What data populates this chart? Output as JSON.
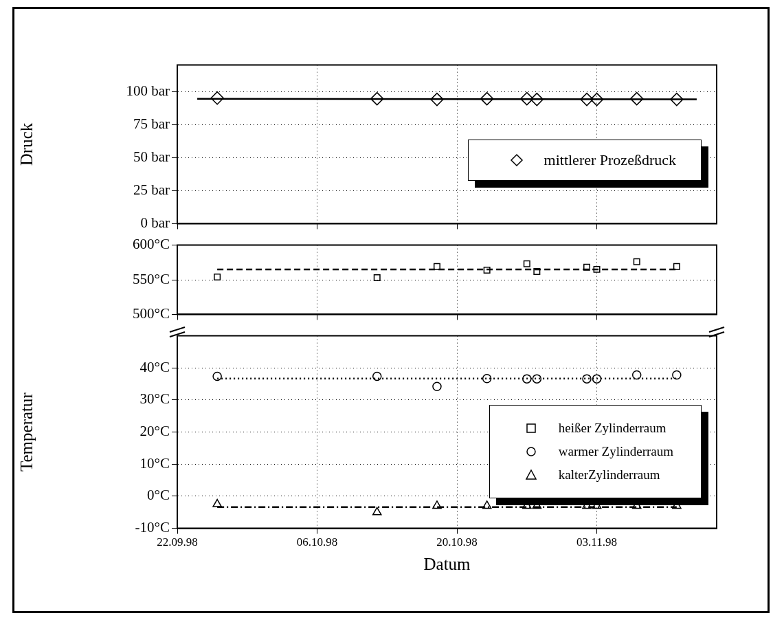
{
  "chart_data": [
    {
      "type": "scatter",
      "ylabel": "Druck",
      "xlim": [
        "1998-09-22",
        "1998-11-15"
      ],
      "xticks": [
        {
          "value": "1998-09-22",
          "label": null
        },
        {
          "value": "1998-10-06",
          "label": null
        },
        {
          "value": "1998-10-20",
          "label": null
        },
        {
          "value": "1998-11-03",
          "label": null
        }
      ],
      "ylim": [
        0,
        120
      ],
      "yticks": [
        {
          "value": 0,
          "label": "0 bar"
        },
        {
          "value": 25,
          "label": "25 bar"
        },
        {
          "value": 50,
          "label": "50 bar"
        },
        {
          "value": 75,
          "label": "75 bar"
        },
        {
          "value": 100,
          "label": "100 bar"
        }
      ],
      "grid": true,
      "legend": "right",
      "tick_labels": "y",
      "x": [
        "1998-09-26",
        "1998-10-12",
        "1998-10-18",
        "1998-10-23",
        "1998-10-27",
        "1998-10-28",
        "1998-11-02",
        "1998-11-03",
        "1998-11-07",
        "1998-11-11"
      ],
      "series": [
        {
          "name": "mittlerer Prozeßdruck",
          "color": "#000000",
          "marker": "diamond",
          "values": [
            95,
            94.5,
            94,
            94.5,
            94.5,
            94,
            94,
            94,
            94.5,
            94
          ]
        },
        {
          "type": "line",
          "color": "#000000",
          "marker": "none",
          "line_style": "solid",
          "x": [
            "1998-09-24",
            "1998-11-13"
          ],
          "values": [
            94.5,
            94
          ]
        }
      ]
    },
    {
      "type": "scatter",
      "xlim": [
        "1998-09-22",
        "1998-11-15"
      ],
      "xticks": [
        {
          "value": "1998-09-22",
          "label": null
        },
        {
          "value": "1998-10-06",
          "label": null
        },
        {
          "value": "1998-10-20",
          "label": null
        },
        {
          "value": "1998-11-03",
          "label": null
        }
      ],
      "ylim": [
        500,
        600
      ],
      "yticks": [
        {
          "value": 500,
          "label": "500°C"
        },
        {
          "value": 550,
          "label": "550°C"
        },
        {
          "value": 600,
          "label": "600°C"
        }
      ],
      "grid": true,
      "tick_labels": "y",
      "x": [
        "1998-09-26",
        "1998-10-12",
        "1998-10-18",
        "1998-10-23",
        "1998-10-27",
        "1998-10-28",
        "1998-11-02",
        "1998-11-03",
        "1998-11-07",
        "1998-11-11"
      ],
      "series": [
        {
          "name": "heißer Zylinderraum",
          "color": "#000000",
          "marker": "square",
          "values": [
            554,
            553,
            569,
            564,
            573,
            562,
            568,
            565,
            576,
            569
          ]
        },
        {
          "type": "line",
          "color": "#000000",
          "marker": "none",
          "line_style": "dashed",
          "x": [
            "1998-09-26",
            "1998-11-11"
          ],
          "values": [
            565,
            565
          ]
        }
      ]
    },
    {
      "type": "scatter",
      "xlabel": "Datum",
      "ylabel": "Temperatur",
      "xlim": [
        "1998-09-22",
        "1998-11-15"
      ],
      "xticks": [
        {
          "value": "1998-09-22",
          "label": "22.09.98"
        },
        {
          "value": "1998-10-06",
          "label": "06.10.98"
        },
        {
          "value": "1998-10-20",
          "label": "20.10.98"
        },
        {
          "value": "1998-11-03",
          "label": "03.11.98"
        }
      ],
      "ylim": [
        -10,
        50
      ],
      "yticks": [
        {
          "value": -10,
          "label": "-10°C"
        },
        {
          "value": 0,
          "label": "0°C"
        },
        {
          "value": 10,
          "label": "10°C"
        },
        {
          "value": 20,
          "label": "20°C"
        },
        {
          "value": 30,
          "label": "30°C"
        },
        {
          "value": 40,
          "label": "40°C"
        }
      ],
      "grid": true,
      "legend": "right",
      "x": [
        "1998-09-26",
        "1998-10-12",
        "1998-10-18",
        "1998-10-23",
        "1998-10-27",
        "1998-10-28",
        "1998-11-02",
        "1998-11-03",
        "1998-11-07",
        "1998-11-11"
      ],
      "series": [
        {
          "name": "warmer Zylinderraum",
          "color": "#000000",
          "marker": "circle",
          "values": [
            37.4,
            37.4,
            34.2,
            36.7,
            36.6,
            36.6,
            36.6,
            36.6,
            37.8,
            37.8
          ]
        },
        {
          "name": "kalterZylinderraum",
          "color": "#000000",
          "marker": "triangle",
          "values": [
            -2.5,
            -5,
            -3,
            -3,
            -3,
            -3,
            -3,
            -3,
            -3,
            -3
          ]
        },
        {
          "type": "line",
          "color": "#000000",
          "marker": "none",
          "line_style": "dotted",
          "x": [
            "1998-09-26",
            "1998-11-11"
          ],
          "values": [
            36.7,
            36.7
          ]
        },
        {
          "type": "line",
          "color": "#000000",
          "marker": "none",
          "line_style": "dashdot",
          "x": [
            "1998-09-26",
            "1998-11-11"
          ],
          "values": [
            -3.4,
            -3.4
          ]
        }
      ]
    }
  ]
}
